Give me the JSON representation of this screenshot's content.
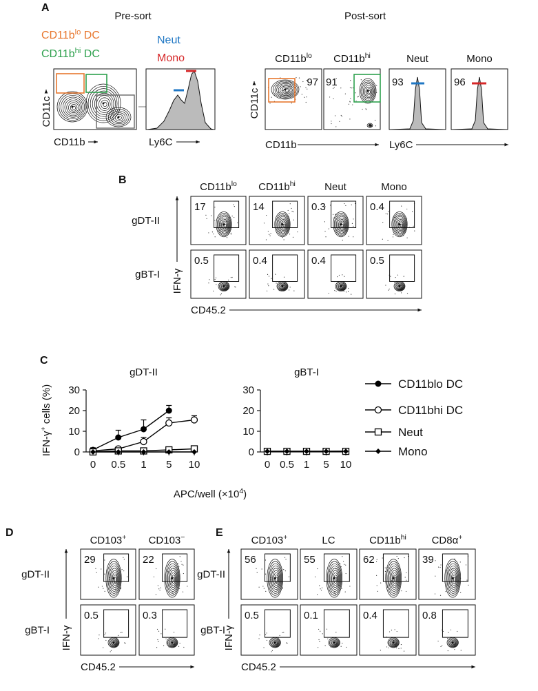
{
  "panel_a": {
    "letter": "A",
    "pre_sort": {
      "title": "Pre-sort",
      "gates": [
        {
          "text": "CD11b",
          "sup": "lo",
          "after": " DC"
        },
        {
          "text": "CD11b",
          "sup": "hi",
          "after": " DC"
        }
      ],
      "hist_gates": [
        "Neut",
        "Mono"
      ],
      "x_label": "CD11b",
      "y_label": "CD11c",
      "hist_x_label": "Ly6C"
    },
    "post_sort": {
      "title": "Post-sort",
      "columns": [
        {
          "label": {
            "text": "CD11b",
            "sup": "lo"
          },
          "purity": 97
        },
        {
          "label": {
            "text": "CD11b",
            "sup": "hi"
          },
          "purity": 91
        },
        {
          "label": "Neut",
          "purity": 93
        },
        {
          "label": "Mono",
          "purity": 96
        }
      ],
      "y_label": "CD11c",
      "x_labels": [
        "CD11b",
        "Ly6C"
      ]
    }
  },
  "panel_b": {
    "letter": "B",
    "columns": [
      {
        "text": "CD11b",
        "sup": "lo"
      },
      {
        "text": "CD11b",
        "sup": "hi"
      },
      "Neut",
      "Mono"
    ],
    "rows": [
      {
        "label": "gDT-II",
        "values": [
          17,
          14,
          0.3,
          0.4
        ]
      },
      {
        "label": "gBT-I",
        "values": [
          0.5,
          0.4,
          0.4,
          0.5
        ]
      }
    ],
    "y_label": "IFN-γ",
    "x_label": "CD45.2"
  },
  "panel_c": {
    "letter": "C",
    "y_label": {
      "text": "IFN-γ",
      "sup": "+",
      "after": " cells (%)"
    },
    "x_label": {
      "text": "APC/well (×10",
      "sup": "4",
      "after": ")"
    }
  },
  "chart_data": [
    {
      "type": "line",
      "title": "gDT-II",
      "categories": [
        "0",
        "0.5",
        "1",
        "5",
        "10"
      ],
      "ylim": [
        0,
        30
      ],
      "yticks": [
        0,
        10,
        20,
        30
      ],
      "series": [
        {
          "name": "CD11blo DC",
          "color": "#000000",
          "marker": "filled-circle",
          "values": [
            1,
            7,
            11,
            20,
            null
          ],
          "errors": [
            1,
            3.5,
            4.5,
            2.5,
            null
          ]
        },
        {
          "name": "CD11bhi DC",
          "color": "#000000",
          "marker": "open-circle",
          "values": [
            0.5,
            1.5,
            5,
            14,
            15.5
          ],
          "errors": [
            0.5,
            1,
            2,
            2.5,
            2
          ]
        },
        {
          "name": "Neut",
          "color": "#000000",
          "marker": "open-square",
          "values": [
            0,
            0.5,
            0.5,
            1,
            1.5
          ]
        },
        {
          "name": "Mono",
          "color": "#000000",
          "marker": "diamond",
          "values": [
            0,
            0,
            0,
            0,
            0
          ]
        }
      ]
    },
    {
      "type": "line",
      "title": "gBT-I",
      "categories": [
        "0",
        "0.5",
        "1",
        "5",
        "10"
      ],
      "ylim": [
        0,
        30
      ],
      "yticks": [
        0,
        10,
        20,
        30
      ],
      "series": [
        {
          "name": "CD11blo DC",
          "color": "#000000",
          "marker": "filled-circle",
          "values": [
            0.3,
            0.3,
            0.3,
            0.3,
            0.4
          ]
        },
        {
          "name": "CD11bhi DC",
          "color": "#000000",
          "marker": "open-circle",
          "values": [
            0.3,
            0.3,
            0.3,
            0.3,
            0.3
          ]
        },
        {
          "name": "Neut",
          "color": "#000000",
          "marker": "open-square",
          "values": [
            0.3,
            0.3,
            0.3,
            0.3,
            0.3
          ]
        },
        {
          "name": "Mono",
          "color": "#000000",
          "marker": "diamond",
          "values": [
            0.3,
            0.3,
            0.3,
            0.3,
            0.3
          ]
        }
      ]
    }
  ],
  "panel_d": {
    "letter": "D",
    "columns": [
      {
        "text": "CD103",
        "sup": "+"
      },
      {
        "text": "CD103",
        "sup": "−"
      }
    ],
    "rows": [
      {
        "label": "gDT-II",
        "values": [
          29,
          22
        ]
      },
      {
        "label": "gBT-I",
        "values": [
          0.5,
          0.3
        ]
      }
    ],
    "y_label": "IFN-γ",
    "x_label": "CD45.2"
  },
  "panel_e": {
    "letter": "E",
    "columns": [
      {
        "text": "CD103",
        "sup": "+"
      },
      "LC",
      {
        "text": "CD11b",
        "sup": "hi"
      },
      {
        "text": "CD8α",
        "sup": "+"
      }
    ],
    "rows": [
      {
        "label": "gDT-II",
        "values": [
          56,
          55,
          62,
          39
        ]
      },
      {
        "label": "gBT-I",
        "values": [
          0.5,
          0.1,
          0.4,
          0.8
        ]
      }
    ],
    "y_label": "IFN-γ",
    "x_label": "CD45.2"
  }
}
